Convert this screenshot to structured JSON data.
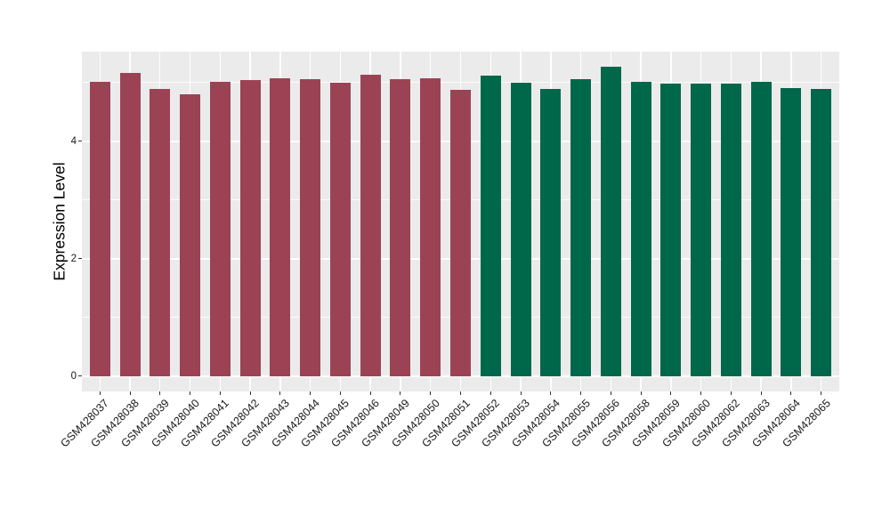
{
  "chart_data": {
    "type": "bar",
    "title": "",
    "xlabel": "",
    "ylabel": "Expression Level",
    "categories": [
      "GSM428037",
      "GSM428038",
      "GSM428039",
      "GSM428040",
      "GSM428041",
      "GSM428042",
      "GSM428043",
      "GSM428044",
      "GSM428045",
      "GSM428046",
      "GSM428049",
      "GSM428050",
      "GSM428051",
      "GSM428052",
      "GSM428053",
      "GSM428054",
      "GSM428055",
      "GSM428056",
      "GSM428058",
      "GSM428059",
      "GSM428060",
      "GSM428062",
      "GSM428063",
      "GSM428064",
      "GSM428065"
    ],
    "values": [
      5.02,
      5.17,
      4.9,
      4.8,
      5.02,
      5.04,
      5.08,
      5.06,
      5.0,
      5.13,
      5.06,
      5.08,
      4.88,
      5.12,
      5.0,
      4.9,
      5.06,
      5.27,
      5.01,
      4.98,
      4.98,
      4.99,
      5.02,
      4.91,
      4.9
    ],
    "groups": [
      "group1",
      "group1",
      "group1",
      "group1",
      "group1",
      "group1",
      "group1",
      "group1",
      "group1",
      "group1",
      "group1",
      "group1",
      "group1",
      "group2",
      "group2",
      "group2",
      "group2",
      "group2",
      "group2",
      "group2",
      "group2",
      "group2",
      "group2",
      "group2",
      "group2"
    ],
    "group_colors": {
      "group1": "#9B4354",
      "group2": "#00684A"
    },
    "ylim": [
      -0.26,
      5.53
    ],
    "yticks": [
      0,
      2,
      4
    ],
    "yticks_minor": [
      1,
      3,
      5
    ],
    "grid": true,
    "legend_position": "none",
    "panel_bg": "#EBEBEB",
    "gridline_color": "#FFFFFF"
  }
}
